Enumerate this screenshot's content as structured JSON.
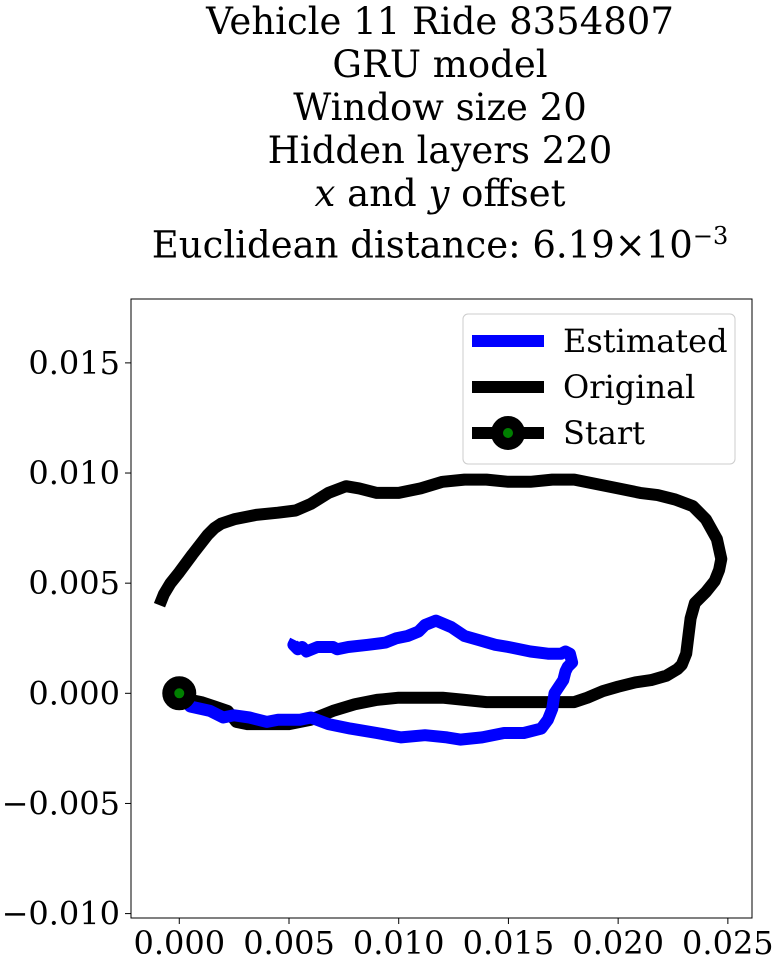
{
  "title": {
    "line1": "Vehicle 11 Ride 8354807",
    "line2": "GRU model",
    "line3": "Window size 20",
    "line4": "Hidden layers 220",
    "line5_x": "x",
    "line5_and": " and ",
    "line5_y": "y",
    "line5_rest": " offset",
    "line6_prefix": "Euclidean distance: 6.19×10",
    "line6_exp": "−3"
  },
  "chart_data": {
    "type": "line",
    "title": "Vehicle 11 Ride 8354807 / GRU model / Window size 20 / Hidden layers 220 / x and y offset / Euclidean distance: 6.19×10^-3",
    "xlabel": "",
    "ylabel": "",
    "xlim": [
      -0.0022,
      0.0261
    ],
    "ylim": [
      -0.0102,
      0.0179
    ],
    "xticks": [
      0.0,
      0.005,
      0.01,
      0.015,
      0.02,
      0.025
    ],
    "xtick_labels": [
      "0.000",
      "0.005",
      "0.010",
      "0.015",
      "0.020",
      "0.025"
    ],
    "yticks": [
      -0.01,
      -0.005,
      0.0,
      0.005,
      0.01,
      0.015
    ],
    "ytick_labels": [
      "−0.010",
      "−0.005",
      "0.000",
      "0.005",
      "0.010",
      "0.015"
    ],
    "grid": false,
    "legend_position": "top-right",
    "series": [
      {
        "name": "Estimated",
        "color": "#0000ff",
        "x": [
          0.0,
          0.0005,
          0.0014,
          0.002,
          0.0025,
          0.0032,
          0.004,
          0.0045,
          0.0055,
          0.006,
          0.0068,
          0.0078,
          0.009,
          0.0101,
          0.0112,
          0.0122,
          0.0128,
          0.0138,
          0.0148,
          0.0157,
          0.0165,
          0.0168,
          0.017,
          0.0171,
          0.0175,
          0.0176,
          0.0177,
          0.0179,
          0.0178,
          0.0176,
          0.0174,
          0.0168,
          0.016,
          0.015,
          0.0144,
          0.0137,
          0.013,
          0.0124,
          0.0117,
          0.0112,
          0.0109,
          0.0104,
          0.0099,
          0.0094,
          0.0086,
          0.0077,
          0.0072,
          0.007,
          0.0067,
          0.0063,
          0.0058,
          0.0056,
          0.0054,
          0.0052,
          0.0053
        ],
        "y": [
          0.0,
          -0.0006,
          -0.0008,
          -0.0011,
          -0.001,
          -0.0011,
          -0.0013,
          -0.0012,
          -0.0012,
          -0.0011,
          -0.0014,
          -0.0016,
          -0.0018,
          -0.002,
          -0.0019,
          -0.002,
          -0.0021,
          -0.002,
          -0.0018,
          -0.0018,
          -0.0016,
          -0.0012,
          -0.0007,
          0.0,
          0.0006,
          0.001,
          0.0012,
          0.0014,
          0.0018,
          0.0019,
          0.0018,
          0.0018,
          0.0019,
          0.0021,
          0.0022,
          0.0024,
          0.0026,
          0.003,
          0.0033,
          0.0031,
          0.0028,
          0.0026,
          0.0025,
          0.0023,
          0.0022,
          0.0021,
          0.002,
          0.0021,
          0.0021,
          0.0021,
          0.0019,
          0.0021,
          0.002,
          0.0022,
          0.0024
        ]
      },
      {
        "name": "Original",
        "color": "#000000",
        "x": [
          -0.0009,
          -0.0007,
          -0.0004,
          0.0,
          0.0006,
          0.0013,
          0.0016,
          0.0019,
          0.0025,
          0.0035,
          0.0045,
          0.0053,
          0.006,
          0.0068,
          0.0076,
          0.0082,
          0.009,
          0.01,
          0.011,
          0.012,
          0.013,
          0.014,
          0.015,
          0.016,
          0.017,
          0.018,
          0.019,
          0.02,
          0.021,
          0.0218,
          0.0226,
          0.0234,
          0.024,
          0.0245,
          0.0247,
          0.0246,
          0.0244,
          0.024,
          0.0235,
          0.0233,
          0.0232,
          0.0231,
          0.0229,
          0.0227,
          0.0222,
          0.0215,
          0.0208,
          0.02,
          0.0193,
          0.0186,
          0.018,
          0.017,
          0.016,
          0.015,
          0.014,
          0.013,
          0.012,
          0.011,
          0.01,
          0.009,
          0.008,
          0.007,
          0.006,
          0.005,
          0.004,
          0.0031,
          0.0026,
          0.0022,
          0.0016,
          0.001,
          0.0005,
          0.0
        ],
        "y": [
          0.004,
          0.0045,
          0.005,
          0.0055,
          0.0063,
          0.0072,
          0.0075,
          0.0077,
          0.0079,
          0.0081,
          0.0082,
          0.0083,
          0.0086,
          0.0091,
          0.0094,
          0.0093,
          0.0091,
          0.0091,
          0.0093,
          0.0096,
          0.0097,
          0.0097,
          0.0096,
          0.0096,
          0.0097,
          0.0097,
          0.0095,
          0.0093,
          0.0091,
          0.009,
          0.0088,
          0.0085,
          0.0079,
          0.007,
          0.0061,
          0.0056,
          0.0051,
          0.0046,
          0.0041,
          0.0034,
          0.0026,
          0.0018,
          0.0013,
          0.0011,
          0.0008,
          0.0006,
          0.0005,
          0.0003,
          0.0001,
          -0.0002,
          -0.0004,
          -0.0004,
          -0.0004,
          -0.0004,
          -0.0004,
          -0.0003,
          -0.0002,
          -0.0002,
          -0.0002,
          -0.0003,
          -0.0005,
          -0.0008,
          -0.0012,
          -0.0014,
          -0.0014,
          -0.0014,
          -0.0013,
          -0.0008,
          -0.0006,
          -0.0004,
          -0.0003,
          0.0
        ]
      }
    ],
    "start_point": {
      "name": "Start",
      "x": 0.0,
      "y": 0.0,
      "edge_color": "#000000",
      "face_color": "#008000"
    }
  }
}
